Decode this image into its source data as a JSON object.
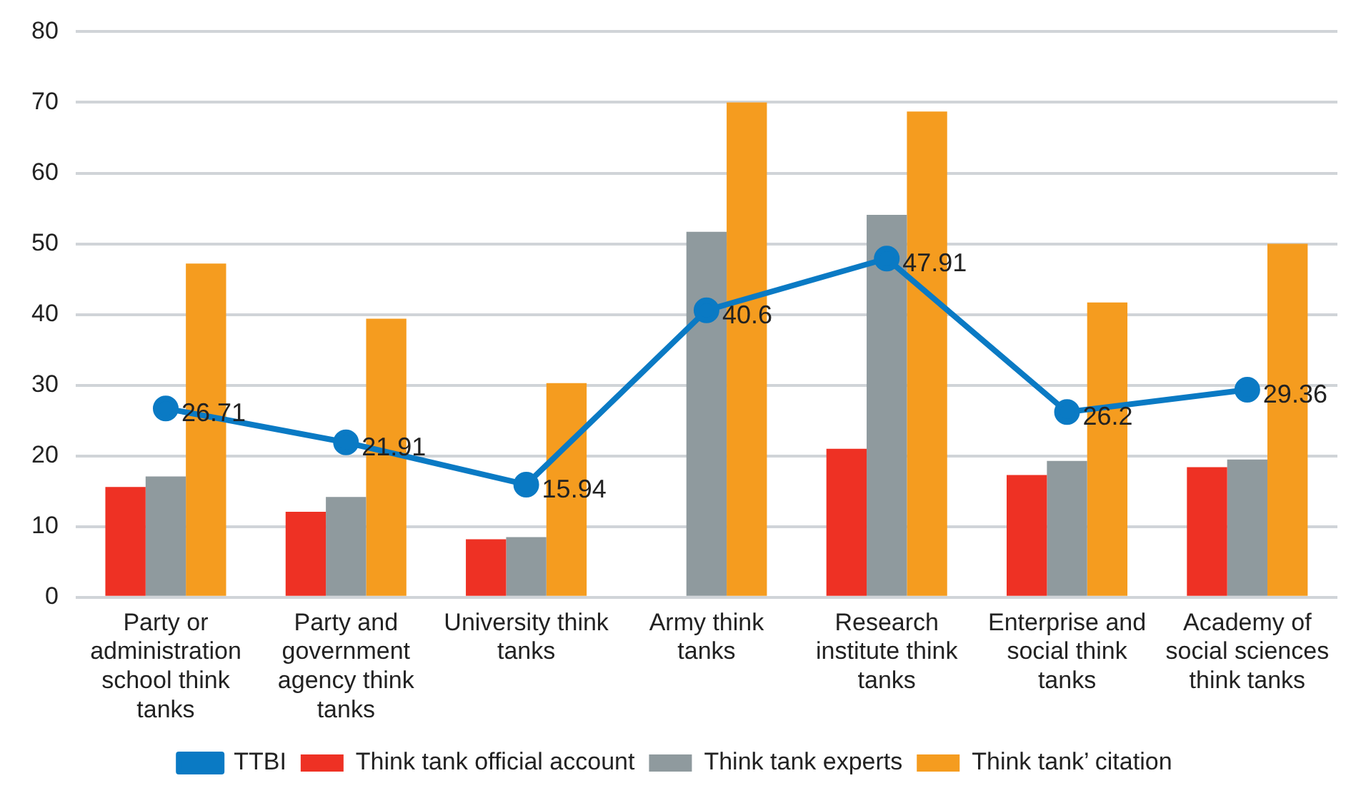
{
  "chart_data": {
    "type": "bar",
    "categories": [
      "Party or administration school think tanks",
      "Party and government agency think tanks",
      "University think tanks",
      "Army think tanks",
      "Research institute think tanks",
      "Enterprise and social think tanks",
      "Academy of social sciences think tanks"
    ],
    "series": [
      {
        "name": "Think tank official account",
        "color": "#ee3124",
        "values": [
          15.6,
          12.1,
          8.2,
          0,
          21.0,
          17.3,
          18.4
        ]
      },
      {
        "name": "Think tank experts",
        "color": "#8f9a9e",
        "values": [
          17.1,
          14.2,
          8.5,
          51.7,
          54.1,
          19.3,
          19.5
        ]
      },
      {
        "name": "Think tank’ citation",
        "color": "#f59c1f",
        "values": [
          47.2,
          39.4,
          30.3,
          70,
          68.7,
          41.7,
          50.0
        ]
      },
      {
        "name": "TTBI",
        "type": "line",
        "color": "#0a7ac4",
        "values": [
          26.71,
          21.91,
          15.94,
          40.6,
          47.91,
          26.2,
          29.36
        ],
        "value_labels": [
          "26.71",
          "21.91",
          "15.94",
          "40.6",
          "47.91",
          "26.2",
          "29.36"
        ],
        "marker": "circle"
      }
    ],
    "ylim": [
      0,
      80
    ],
    "yticks": [
      0,
      10,
      20,
      30,
      40,
      50,
      60,
      70,
      80
    ],
    "grid": "y",
    "legend": "bottom"
  }
}
